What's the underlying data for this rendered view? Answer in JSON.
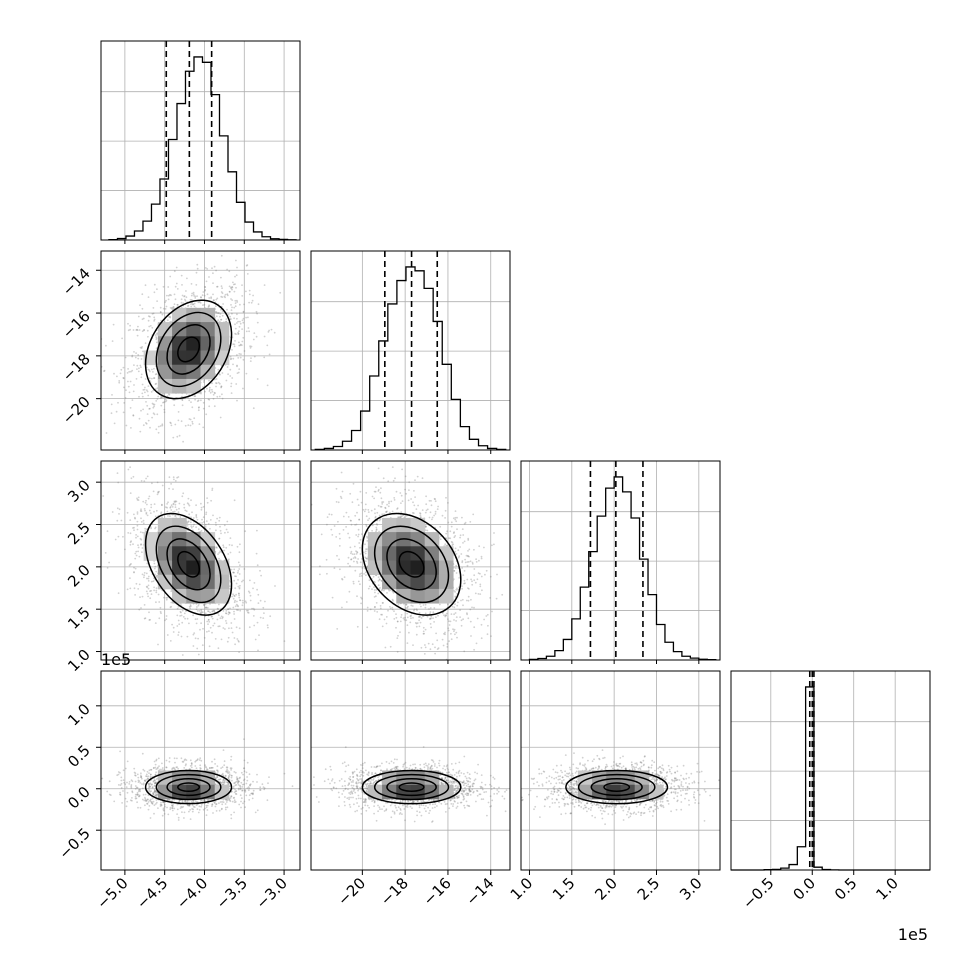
{
  "chart_data": {
    "type": "scatter",
    "subtype": "corner-plot",
    "n_params": 4,
    "grid": true,
    "colors": {
      "ink": "#000000",
      "grid": "#b0b0b0",
      "points": "#7a7a7a"
    },
    "params": [
      {
        "range": [
          -5.3,
          -2.8
        ],
        "ticks": [
          -5.0,
          -4.5,
          -4.0,
          -3.5,
          -3.0
        ],
        "tick_labels": [
          "−5.0",
          "−4.5",
          "−4.0",
          "−3.5",
          "−3.0"
        ]
      },
      {
        "range": [
          -22.4,
          -13.1
        ],
        "ticks": [
          -20,
          -18,
          -16,
          -14
        ],
        "tick_labels": [
          "−20",
          "−18",
          "−16",
          "−14"
        ]
      },
      {
        "range": [
          0.9,
          3.25
        ],
        "ticks": [
          1.0,
          1.5,
          2.0,
          2.5,
          3.0
        ],
        "tick_labels": [
          "1.0",
          "1.5",
          "2.0",
          "2.5",
          "3.0"
        ]
      },
      {
        "range": [
          -0.98,
          1.42
        ],
        "ticks": [
          -0.5,
          0.0,
          0.5,
          1.0
        ],
        "tick_labels": [
          "−0.5",
          "0.0",
          "0.5",
          "1.0"
        ],
        "exponent": "1e5"
      }
    ],
    "stats": [
      {
        "mean": -4.2,
        "sd": 0.27,
        "quantiles": [
          -4.48,
          -4.19,
          -3.91
        ]
      },
      {
        "mean": -17.7,
        "sd": 1.15,
        "quantiles": [
          -18.95,
          -17.7,
          -16.5
        ]
      },
      {
        "mean": 2.03,
        "sd": 0.3,
        "quantiles": [
          1.72,
          2.02,
          2.34
        ]
      },
      {
        "mean": 0.02,
        "sd": 0.1,
        "quantiles": [
          -0.03,
          0.0,
          0.02
        ]
      }
    ],
    "correlations": [
      [
        1,
        0.3,
        -0.4,
        0
      ],
      [
        0.3,
        1,
        -0.3,
        0
      ],
      [
        -0.4,
        -0.3,
        1,
        0
      ],
      [
        0,
        0,
        0,
        1
      ]
    ],
    "histograms": [
      {
        "param": 0,
        "edges": [
          -5.2,
          -2.85
        ],
        "counts": [
          2,
          8,
          22,
          50,
          105,
          200,
          340,
          560,
          760,
          940,
          1020,
          990,
          810,
          580,
          380,
          210,
          100,
          45,
          18,
          7,
          3,
          1
        ]
      },
      {
        "param": 1,
        "edges": [
          -22.2,
          -13.3
        ],
        "counts": [
          3,
          8,
          18,
          45,
          100,
          200,
          380,
          560,
          750,
          870,
          940,
          920,
          830,
          660,
          440,
          260,
          120,
          55,
          22,
          8,
          3
        ]
      },
      {
        "param": 2,
        "edges": [
          1.0,
          3.2
        ],
        "counts": [
          3,
          8,
          20,
          50,
          110,
          220,
          390,
          580,
          770,
          920,
          980,
          900,
          760,
          540,
          350,
          190,
          95,
          45,
          20,
          10,
          4,
          2
        ]
      },
      {
        "param": 3,
        "edges": [
          -0.98,
          1.42
        ],
        "counts": [
          0,
          0,
          0,
          0,
          2,
          4,
          12,
          35,
          150,
          1180,
          18,
          3,
          1,
          0,
          0,
          0,
          0,
          0,
          0,
          0,
          0,
          0,
          0,
          0
        ]
      }
    ],
    "axis_exponents": [
      {
        "text": "1e5",
        "where": "y-axis of row 4"
      },
      {
        "text": "1e5",
        "where": "x-axis of column 4"
      }
    ]
  }
}
